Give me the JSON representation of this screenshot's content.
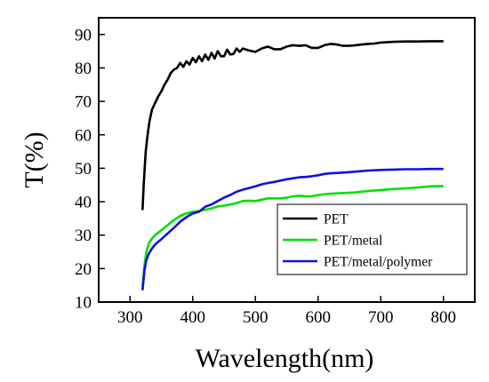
{
  "chart_data": {
    "type": "line",
    "xlabel": "Wavelength(nm)",
    "ylabel": "T(%)",
    "xlim": [
      250,
      850
    ],
    "ylim": [
      10,
      95
    ],
    "xticks": [
      300,
      400,
      500,
      600,
      700,
      800
    ],
    "yticks": [
      10,
      20,
      30,
      40,
      50,
      60,
      70,
      80,
      90
    ],
    "grid": false,
    "legend_position": "lower-right",
    "series": [
      {
        "name": "PET",
        "color": "#000000",
        "points": [
          [
            320,
            37.5
          ],
          [
            322,
            46
          ],
          [
            325,
            55
          ],
          [
            328,
            60
          ],
          [
            331,
            64
          ],
          [
            335,
            67.5
          ],
          [
            340,
            69.5
          ],
          [
            345,
            71.5
          ],
          [
            350,
            73
          ],
          [
            355,
            75
          ],
          [
            360,
            76.5
          ],
          [
            365,
            78.5
          ],
          [
            370,
            79.5
          ],
          [
            375,
            80
          ],
          [
            380,
            81.5
          ],
          [
            385,
            80.3
          ],
          [
            390,
            82
          ],
          [
            395,
            81
          ],
          [
            400,
            83
          ],
          [
            405,
            81.7
          ],
          [
            410,
            83.5
          ],
          [
            415,
            82
          ],
          [
            420,
            84
          ],
          [
            425,
            82.4
          ],
          [
            430,
            84.5
          ],
          [
            435,
            82.8
          ],
          [
            440,
            85
          ],
          [
            445,
            83.5
          ],
          [
            450,
            83.5
          ],
          [
            455,
            85.5
          ],
          [
            460,
            84
          ],
          [
            465,
            84.2
          ],
          [
            470,
            85.8
          ],
          [
            475,
            84.8
          ],
          [
            480,
            85.8
          ],
          [
            490,
            85.2
          ],
          [
            500,
            84.8
          ],
          [
            510,
            85.8
          ],
          [
            520,
            86.4
          ],
          [
            530,
            85.6
          ],
          [
            540,
            85.6
          ],
          [
            550,
            86.4
          ],
          [
            560,
            86.8
          ],
          [
            570,
            86.6
          ],
          [
            580,
            86.8
          ],
          [
            590,
            86
          ],
          [
            600,
            86
          ],
          [
            610,
            86.8
          ],
          [
            620,
            87.2
          ],
          [
            630,
            87
          ],
          [
            640,
            86.6
          ],
          [
            650,
            86.6
          ],
          [
            660,
            86.8
          ],
          [
            670,
            87
          ],
          [
            680,
            87.2
          ],
          [
            690,
            87.3
          ],
          [
            700,
            87.6
          ],
          [
            720,
            87.8
          ],
          [
            740,
            87.9
          ],
          [
            760,
            87.9
          ],
          [
            780,
            88
          ],
          [
            800,
            88
          ]
        ]
      },
      {
        "name": "PET/metal",
        "color": "#00e000",
        "points": [
          [
            320,
            14.5
          ],
          [
            323,
            21
          ],
          [
            326,
            25
          ],
          [
            330,
            27.5
          ],
          [
            335,
            29
          ],
          [
            340,
            30
          ],
          [
            350,
            31.5
          ],
          [
            360,
            33
          ],
          [
            370,
            34.5
          ],
          [
            380,
            35.8
          ],
          [
            390,
            36.5
          ],
          [
            400,
            37
          ],
          [
            410,
            37.2
          ],
          [
            420,
            37.6
          ],
          [
            430,
            38
          ],
          [
            440,
            38.6
          ],
          [
            450,
            38.8
          ],
          [
            460,
            39.2
          ],
          [
            470,
            39.6
          ],
          [
            480,
            40.2
          ],
          [
            490,
            40.3
          ],
          [
            500,
            40.2
          ],
          [
            510,
            40.6
          ],
          [
            520,
            41
          ],
          [
            530,
            41
          ],
          [
            540,
            41
          ],
          [
            550,
            41.2
          ],
          [
            560,
            41.6
          ],
          [
            570,
            41.8
          ],
          [
            580,
            41.6
          ],
          [
            590,
            41.6
          ],
          [
            600,
            42
          ],
          [
            620,
            42.4
          ],
          [
            640,
            42.6
          ],
          [
            660,
            42.8
          ],
          [
            680,
            43.2
          ],
          [
            700,
            43.5
          ],
          [
            720,
            43.8
          ],
          [
            740,
            44
          ],
          [
            760,
            44.3
          ],
          [
            780,
            44.6
          ],
          [
            800,
            44.7
          ]
        ]
      },
      {
        "name": "PET/metal/polymer",
        "color": "#1010e0",
        "points": [
          [
            320,
            13.5
          ],
          [
            323,
            19.5
          ],
          [
            326,
            22.5
          ],
          [
            330,
            24.5
          ],
          [
            335,
            26
          ],
          [
            340,
            27.2
          ],
          [
            350,
            28.8
          ],
          [
            360,
            30.5
          ],
          [
            370,
            32.2
          ],
          [
            380,
            34
          ],
          [
            390,
            35.4
          ],
          [
            400,
            36.5
          ],
          [
            410,
            37
          ],
          [
            420,
            38.5
          ],
          [
            430,
            39.2
          ],
          [
            440,
            40.2
          ],
          [
            450,
            41.2
          ],
          [
            460,
            42
          ],
          [
            470,
            43
          ],
          [
            480,
            43.6
          ],
          [
            490,
            44.1
          ],
          [
            500,
            44.6
          ],
          [
            510,
            45.2
          ],
          [
            520,
            45.6
          ],
          [
            530,
            45.9
          ],
          [
            540,
            46.3
          ],
          [
            550,
            46.7
          ],
          [
            560,
            47
          ],
          [
            570,
            47.3
          ],
          [
            580,
            47.4
          ],
          [
            590,
            47.6
          ],
          [
            600,
            47.9
          ],
          [
            610,
            48.3
          ],
          [
            620,
            48.5
          ],
          [
            640,
            48.7
          ],
          [
            660,
            49
          ],
          [
            680,
            49.3
          ],
          [
            700,
            49.5
          ],
          [
            720,
            49.6
          ],
          [
            740,
            49.7
          ],
          [
            760,
            49.7
          ],
          [
            780,
            49.8
          ],
          [
            800,
            49.8
          ]
        ]
      }
    ]
  }
}
